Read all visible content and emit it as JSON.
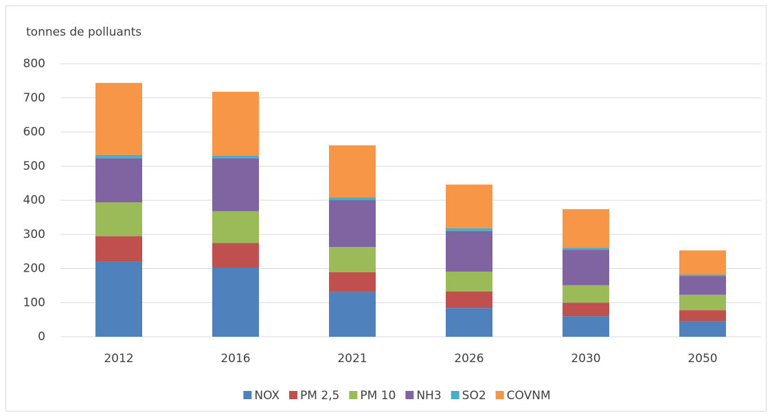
{
  "chart_data": {
    "type": "stacked_bar",
    "title": "tonnes de polluants",
    "categories": [
      "2012",
      "2016",
      "2021",
      "2026",
      "2030",
      "2050"
    ],
    "series": [
      {
        "name": "NOX",
        "color": "#4f81bd",
        "values": [
          221,
          203,
          131,
          84,
          60,
          46
        ]
      },
      {
        "name": "PM 2,5",
        "color": "#c0504d",
        "values": [
          74,
          72,
          58,
          49,
          40,
          32
        ]
      },
      {
        "name": "PM 10",
        "color": "#9bbb59",
        "values": [
          99,
          93,
          74,
          58,
          51,
          45
        ]
      },
      {
        "name": "NH3",
        "color": "#8064a2",
        "values": [
          129,
          155,
          137,
          119,
          104,
          55
        ]
      },
      {
        "name": "SO2",
        "color": "#4bacc6",
        "values": [
          10,
          8,
          8,
          8,
          6,
          4
        ]
      },
      {
        "name": "COVNM",
        "color": "#f79646",
        "values": [
          211,
          187,
          153,
          128,
          113,
          71
        ]
      }
    ],
    "ylim": [
      0,
      800
    ],
    "yticks": [
      0,
      100,
      200,
      300,
      400,
      500,
      600,
      700,
      800
    ],
    "grid": true,
    "legend": "bottom"
  }
}
